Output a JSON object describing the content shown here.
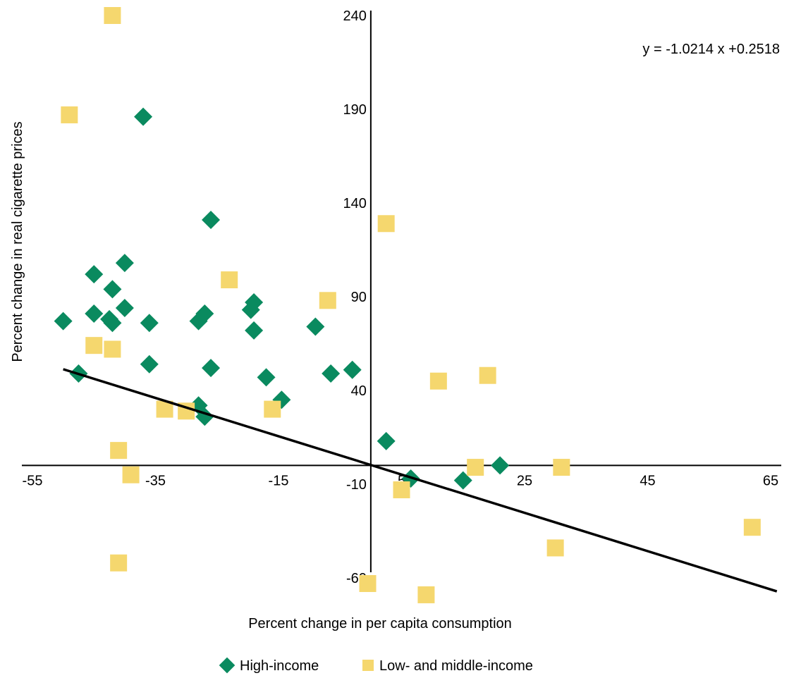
{
  "chart_data": {
    "type": "scatter",
    "title": "",
    "xlabel": "Percent change in per capita consumption",
    "ylabel": "Percent change in real cigarette prices",
    "xlim": [
      -55,
      65
    ],
    "ylim": [
      -60,
      240
    ],
    "x_ticks": [
      "-55",
      "-35",
      "-15",
      "5",
      "25",
      "45",
      "65"
    ],
    "y_ticks": [
      "240",
      "190",
      "140",
      "90",
      "40",
      "-10",
      "-60"
    ],
    "equation": "y = -1.0214 x +0.2518",
    "regression": {
      "slope": -1.0214,
      "intercept": 0.2518,
      "x_range": [
        -50,
        66
      ]
    },
    "legend_position": "bottom",
    "series": [
      {
        "name": "High-income",
        "marker": "diamond",
        "color": "#0a8a5f",
        "points": [
          [
            -37,
            186
          ],
          [
            -26,
            131
          ],
          [
            -40,
            108
          ],
          [
            -45,
            102
          ],
          [
            -42,
            94
          ],
          [
            -40,
            84
          ],
          [
            -45,
            81
          ],
          [
            -42.5,
            78
          ],
          [
            -42,
            76
          ],
          [
            -50,
            77
          ],
          [
            -36,
            76
          ],
          [
            -28,
            77
          ],
          [
            -27,
            81
          ],
          [
            -19,
            87
          ],
          [
            -19.5,
            83
          ],
          [
            -19,
            72
          ],
          [
            -9,
            74
          ],
          [
            -36,
            54
          ],
          [
            -47.5,
            49
          ],
          [
            -26,
            52
          ],
          [
            -17,
            47
          ],
          [
            -6.5,
            49
          ],
          [
            -3,
            51
          ],
          [
            -28,
            32
          ],
          [
            -27,
            26
          ],
          [
            -14.5,
            35
          ],
          [
            2.5,
            13
          ],
          [
            6.5,
            -7
          ],
          [
            15,
            -8
          ],
          [
            21,
            0
          ]
        ]
      },
      {
        "name": "Low- and middle-income",
        "marker": "square",
        "color": "#f5d76e",
        "points": [
          [
            -42,
            240
          ],
          [
            -49,
            187
          ],
          [
            2.5,
            129
          ],
          [
            -23,
            99
          ],
          [
            -7,
            88
          ],
          [
            -45,
            64
          ],
          [
            -42,
            62
          ],
          [
            -33.5,
            30
          ],
          [
            -30,
            29
          ],
          [
            -16,
            30
          ],
          [
            -41,
            8
          ],
          [
            -39,
            -5
          ],
          [
            11,
            45
          ],
          [
            19,
            48
          ],
          [
            5,
            -13
          ],
          [
            17,
            -1
          ],
          [
            31,
            -1
          ],
          [
            62,
            -33
          ],
          [
            30,
            -44
          ],
          [
            -41,
            -52
          ],
          [
            -0.5,
            -63
          ],
          [
            9,
            -69
          ]
        ]
      }
    ]
  }
}
